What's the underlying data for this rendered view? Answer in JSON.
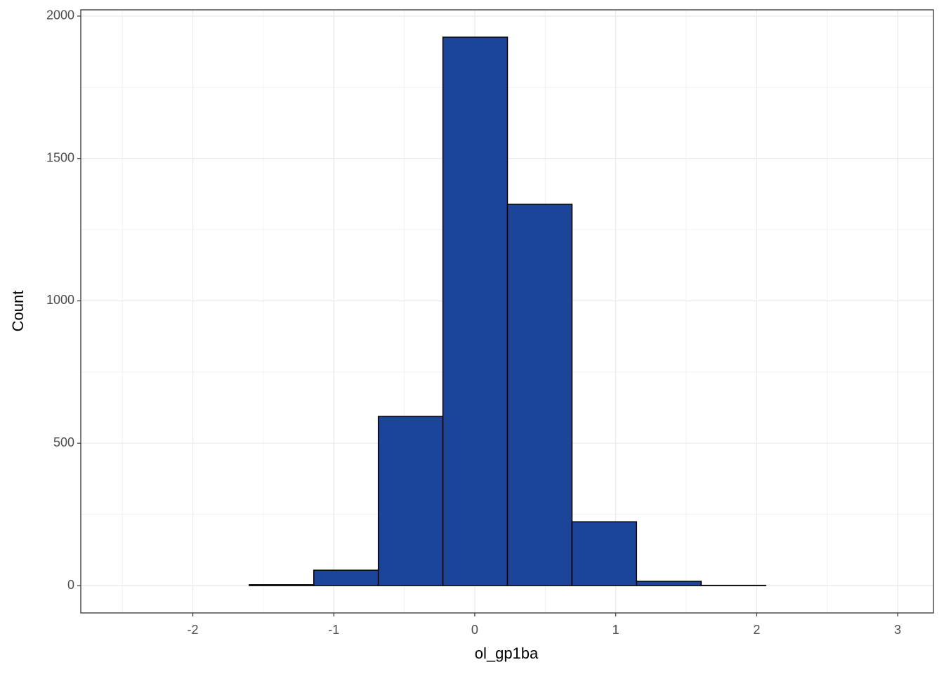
{
  "chart_data": {
    "type": "histogram",
    "x_label": "ol_gp1ba",
    "y_label": "Count",
    "bins": [
      -2.516,
      -2.058,
      -1.6,
      -1.142,
      -0.684,
      -0.226,
      0.232,
      0.69,
      1.148,
      1.606,
      2.064,
      2.522,
      2.98
    ],
    "values": [
      0,
      0,
      3,
      54,
      594,
      1926,
      1339,
      224,
      15,
      1,
      0,
      0
    ],
    "color": "#1a4599",
    "xlim": [
      -2.795,
      3.254
    ],
    "ylim": [
      -96,
      2022
    ],
    "xticks": [
      -2,
      -1,
      0,
      1,
      2,
      3
    ],
    "yticks": [
      0,
      500,
      1000,
      1500,
      2000
    ],
    "xminor": [
      -2.5,
      -1.5,
      -0.5,
      0.5,
      1.5,
      2.5
    ],
    "yminor": [
      250,
      750,
      1250,
      1750
    ],
    "grid": true
  }
}
